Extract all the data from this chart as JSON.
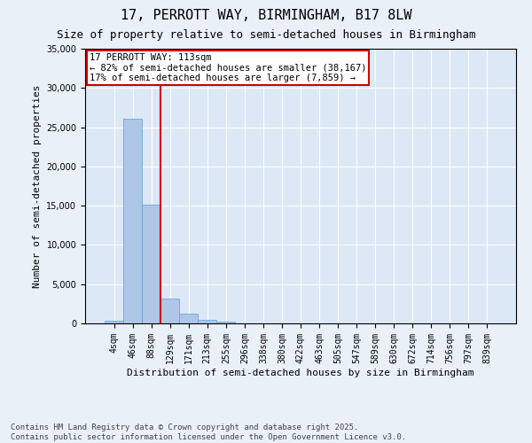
{
  "title": "17, PERROTT WAY, BIRMINGHAM, B17 8LW",
  "subtitle": "Size of property relative to semi-detached houses in Birmingham",
  "xlabel": "Distribution of semi-detached houses by size in Birmingham",
  "ylabel": "Number of semi-detached properties",
  "categories": [
    "4sqm",
    "46sqm",
    "88sqm",
    "129sqm",
    "171sqm",
    "213sqm",
    "255sqm",
    "296sqm",
    "338sqm",
    "380sqm",
    "422sqm",
    "463sqm",
    "505sqm",
    "547sqm",
    "589sqm",
    "630sqm",
    "672sqm",
    "714sqm",
    "756sqm",
    "797sqm",
    "839sqm"
  ],
  "values": [
    350,
    26100,
    15100,
    3200,
    1200,
    450,
    200,
    0,
    0,
    0,
    0,
    0,
    0,
    0,
    0,
    0,
    0,
    0,
    0,
    0,
    0
  ],
  "bar_color": "#aec6e8",
  "bar_edge_color": "#5a9fd4",
  "vline_x_index": 2.5,
  "vline_color": "#cc0000",
  "annotation_title": "17 PERROTT WAY: 113sqm",
  "annotation_line2": "← 82% of semi-detached houses are smaller (38,167)",
  "annotation_line3": "17% of semi-detached houses are larger (7,859) →",
  "annotation_box_color": "#cc0000",
  "ylim": [
    0,
    35000
  ],
  "yticks": [
    0,
    5000,
    10000,
    15000,
    20000,
    25000,
    30000,
    35000
  ],
  "background_color": "#eaf0f8",
  "plot_bg_color": "#dce8f5",
  "footnote": "Contains HM Land Registry data © Crown copyright and database right 2025.\nContains public sector information licensed under the Open Government Licence v3.0.",
  "grid_color": "#ffffff",
  "title_fontsize": 11,
  "subtitle_fontsize": 9,
  "label_fontsize": 8,
  "tick_fontsize": 7,
  "annot_fontsize": 7.5,
  "footnote_fontsize": 6.5
}
